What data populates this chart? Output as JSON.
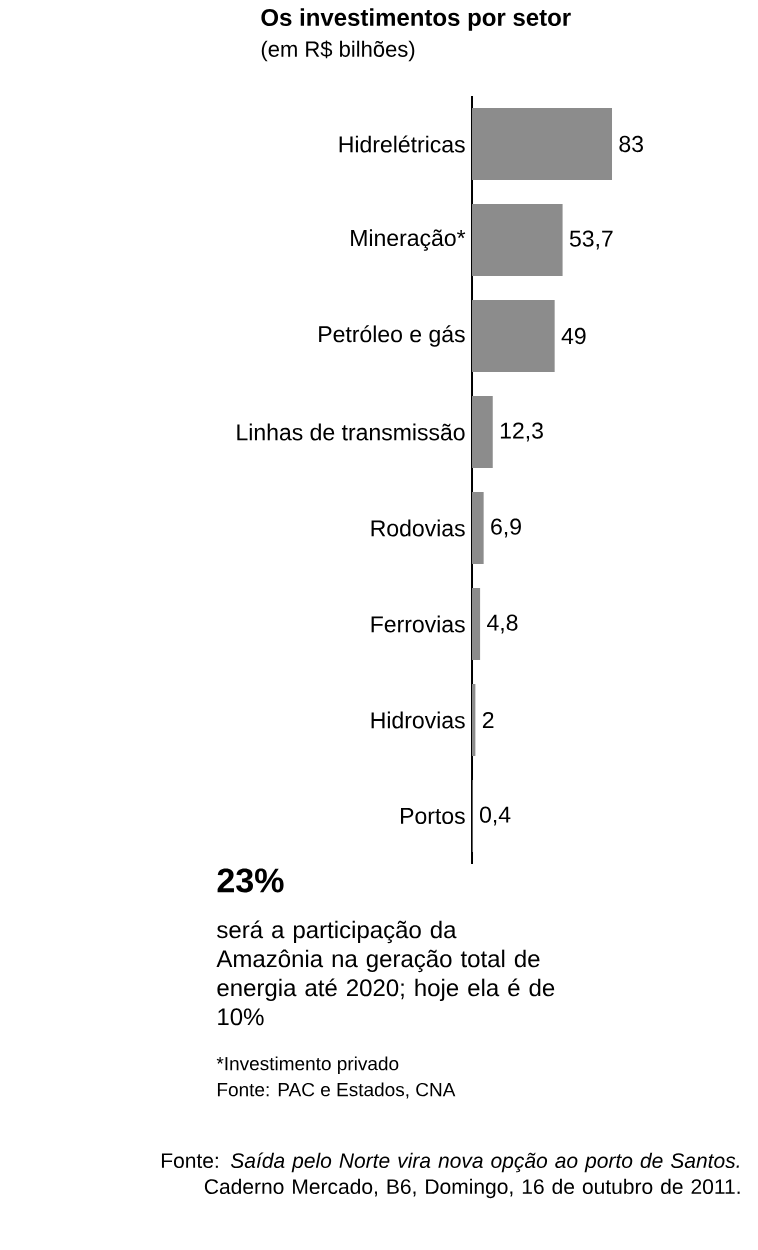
{
  "chart_data": {
    "type": "bar",
    "orientation": "horizontal",
    "title": "Os investimentos por setor",
    "subtitle": "(em R$ bilhões)",
    "categories": [
      "Hidrelétricas",
      "Mineração*",
      "Petróleo e gás",
      "Linhas de transmissão",
      "Rodovias",
      "Ferrovias",
      "Hidrovias",
      "Portos"
    ],
    "values": [
      83,
      53.7,
      49,
      12.3,
      6.9,
      4.8,
      2,
      0.4
    ],
    "value_labels": [
      "83",
      "53,7",
      "49",
      "12,3",
      "6,9",
      "4,8",
      "2",
      "0,4"
    ],
    "color": "#8c8c8c",
    "annotations": [
      "23%",
      "será a participação da Amazônia na geração total de energia até 2020; hoje ela é de 10%",
      "*Investimento privado",
      "Fonte: PAC e Estados, CNA",
      "Fonte: *Saída pelo Norte vira nova opção ao porto de Santos.* Caderno Mercado, B6, Domingo, 16 de outubro de 2011."
    ]
  }
}
